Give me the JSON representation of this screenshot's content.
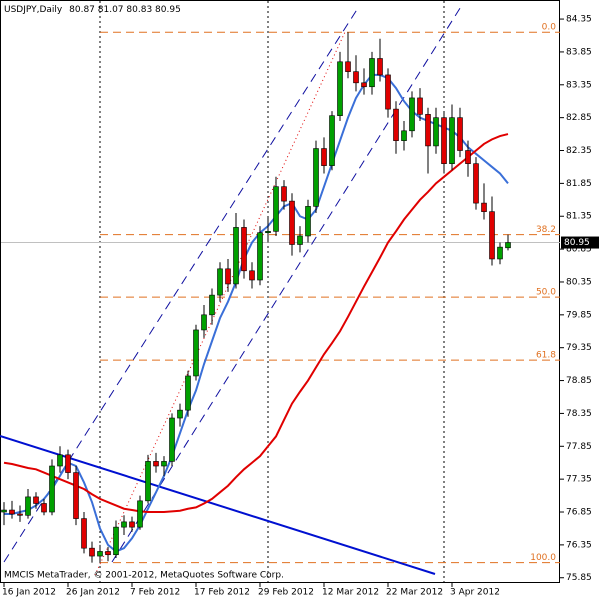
{
  "chart_data": {
    "type": "candlestick",
    "symbol": "USDJPY,Daily",
    "footer": "MMCIS MetaTrader, © 2001-2012, MetaQuotes Software Corp.",
    "categories": [
      "16 Jan 2012",
      null,
      null,
      null,
      null,
      null,
      null,
      null,
      "26 Jan 2012",
      null,
      null,
      null,
      null,
      null,
      null,
      null,
      "7 Feb 2012",
      null,
      null,
      null,
      null,
      null,
      null,
      null,
      "17 Feb 2012",
      null,
      null,
      null,
      null,
      null,
      null,
      null,
      "29 Feb 2012",
      null,
      null,
      null,
      null,
      null,
      null,
      null,
      "12 Mar 2012",
      null,
      null,
      null,
      null,
      null,
      null,
      null,
      "22 Mar 2012",
      null,
      null,
      null,
      null,
      null,
      null,
      null,
      "3 Apr 2012",
      null,
      null,
      null,
      null,
      null,
      null,
      null
    ],
    "open": [
      76.85,
      76.88,
      76.82,
      76.8,
      77.08,
      76.98,
      76.85,
      77.55,
      77.72,
      77.45,
      76.75,
      76.3,
      76.18,
      76.25,
      76.2,
      76.62,
      76.7,
      76.62,
      77.02,
      77.62,
      77.55,
      77.62,
      78.28,
      78.4,
      78.92,
      79.62,
      79.85,
      80.15,
      80.55,
      80.32,
      81.18,
      80.52,
      80.38,
      81.1,
      81.12,
      81.8,
      81.58,
      80.92,
      81.05,
      81.5,
      82.38,
      82.12,
      82.88,
      83.7,
      83.55,
      83.38,
      83.32,
      83.75,
      83.5,
      82.98,
      82.5,
      82.65,
      83.15,
      82.9,
      82.42,
      82.85,
      82.15,
      82.85,
      82.35,
      82.15,
      81.55,
      81.42,
      80.7,
      80.87
    ],
    "high": [
      77.0,
      77.02,
      76.95,
      77.2,
      77.15,
      77.05,
      77.65,
      77.85,
      77.8,
      77.55,
      76.85,
      76.4,
      76.35,
      76.32,
      76.72,
      76.8,
      76.78,
      77.1,
      77.72,
      77.75,
      77.7,
      78.35,
      78.5,
      79.0,
      79.7,
      80.0,
      80.25,
      80.65,
      80.7,
      81.4,
      81.3,
      80.65,
      81.2,
      81.35,
      81.95,
      81.9,
      81.7,
      81.2,
      81.6,
      82.5,
      82.55,
      82.95,
      83.85,
      84.15,
      83.8,
      83.6,
      83.85,
      84.05,
      83.6,
      83.1,
      82.8,
      83.25,
      83.3,
      83.0,
      83.0,
      82.95,
      83.05,
      83.0,
      82.5,
      82.25,
      81.85,
      81.65,
      80.95,
      81.07
    ],
    "low": [
      76.65,
      76.75,
      76.7,
      76.75,
      76.9,
      76.8,
      76.8,
      77.45,
      77.35,
      76.65,
      76.22,
      76.08,
      76.08,
      76.1,
      76.15,
      76.5,
      76.55,
      76.58,
      76.98,
      77.45,
      77.4,
      77.55,
      78.15,
      78.3,
      78.85,
      79.5,
      79.7,
      80.05,
      80.2,
      80.25,
      80.4,
      80.25,
      80.3,
      80.95,
      81.05,
      81.45,
      80.75,
      80.8,
      80.95,
      81.4,
      82.0,
      82.05,
      82.8,
      83.45,
      83.25,
      83.2,
      83.2,
      83.4,
      82.85,
      82.3,
      82.35,
      82.55,
      82.8,
      82.0,
      82.3,
      82.0,
      82.05,
      82.25,
      81.95,
      81.45,
      81.3,
      80.6,
      80.62,
      80.83
    ],
    "close": [
      76.88,
      76.82,
      76.8,
      77.08,
      76.98,
      76.85,
      77.55,
      77.72,
      77.45,
      76.75,
      76.3,
      76.18,
      76.25,
      76.2,
      76.62,
      76.7,
      76.62,
      77.02,
      77.62,
      77.55,
      77.62,
      78.28,
      78.4,
      78.92,
      79.62,
      79.85,
      80.15,
      80.55,
      80.32,
      81.18,
      80.52,
      80.38,
      81.1,
      81.12,
      81.8,
      81.58,
      80.92,
      81.05,
      81.5,
      82.38,
      82.12,
      82.88,
      83.7,
      83.55,
      83.38,
      83.32,
      83.75,
      83.5,
      82.98,
      82.5,
      82.65,
      83.15,
      82.9,
      82.42,
      82.85,
      82.15,
      82.85,
      82.35,
      82.15,
      81.55,
      81.42,
      80.7,
      80.88,
      80.95
    ],
    "up_color": "#00a000",
    "down_color": "#e00000",
    "moving_averages": [
      {
        "color": "#3a6fd8",
        "values": [
          76.82,
          76.82,
          76.85,
          76.88,
          76.95,
          77.05,
          77.2,
          77.4,
          77.6,
          77.55,
          77.3,
          77.0,
          76.6,
          76.35,
          76.25,
          76.3,
          76.45,
          76.65,
          76.9,
          77.15,
          77.4,
          77.7,
          78.05,
          78.4,
          78.7,
          79.1,
          79.45,
          79.8,
          80.05,
          80.35,
          80.7,
          80.95,
          81.1,
          81.2,
          81.35,
          81.5,
          81.55,
          81.35,
          81.3,
          81.45,
          81.8,
          82.15,
          82.5,
          82.85,
          83.15,
          83.35,
          83.5,
          83.5,
          83.45,
          83.3,
          83.1,
          82.95,
          82.85,
          82.8,
          82.75,
          82.7,
          82.65,
          82.55,
          82.4,
          82.3,
          82.2,
          82.1,
          82.0,
          81.85
        ]
      },
      {
        "color": "#e00000",
        "values": [
          77.6,
          77.58,
          77.55,
          77.52,
          77.5,
          77.45,
          77.4,
          77.35,
          77.3,
          77.25,
          77.2,
          77.12,
          77.05,
          77.0,
          76.95,
          76.9,
          76.88,
          76.86,
          76.85,
          76.85,
          76.85,
          76.86,
          76.87,
          76.9,
          76.92,
          76.98,
          77.05,
          77.15,
          77.25,
          77.38,
          77.5,
          77.6,
          77.7,
          77.85,
          78.0,
          78.25,
          78.5,
          78.68,
          78.85,
          79.05,
          79.25,
          79.42,
          79.6,
          79.82,
          80.05,
          80.28,
          80.5,
          80.72,
          80.95,
          81.12,
          81.3,
          81.45,
          81.6,
          81.72,
          81.85,
          81.95,
          82.05,
          82.15,
          82.25,
          82.35,
          82.45,
          82.52,
          82.57,
          82.6
        ]
      }
    ],
    "fib_levels": [
      {
        "label": "0.0",
        "price": 84.15
      },
      {
        "label": "38.2",
        "price": 81.07
      },
      {
        "label": "50.0",
        "price": 80.12
      },
      {
        "label": "61.8",
        "price": 79.16
      },
      {
        "label": "100.0",
        "price": 76.08
      }
    ],
    "fib_color": "#e07020",
    "ylim": [
      75.77,
      84.64
    ],
    "yticks": [
      84.35,
      83.85,
      83.35,
      82.85,
      82.35,
      81.85,
      81.35,
      80.85,
      80.35,
      79.85,
      79.35,
      78.85,
      78.35,
      77.85,
      77.35,
      76.85,
      76.35,
      75.85
    ]
  }
}
